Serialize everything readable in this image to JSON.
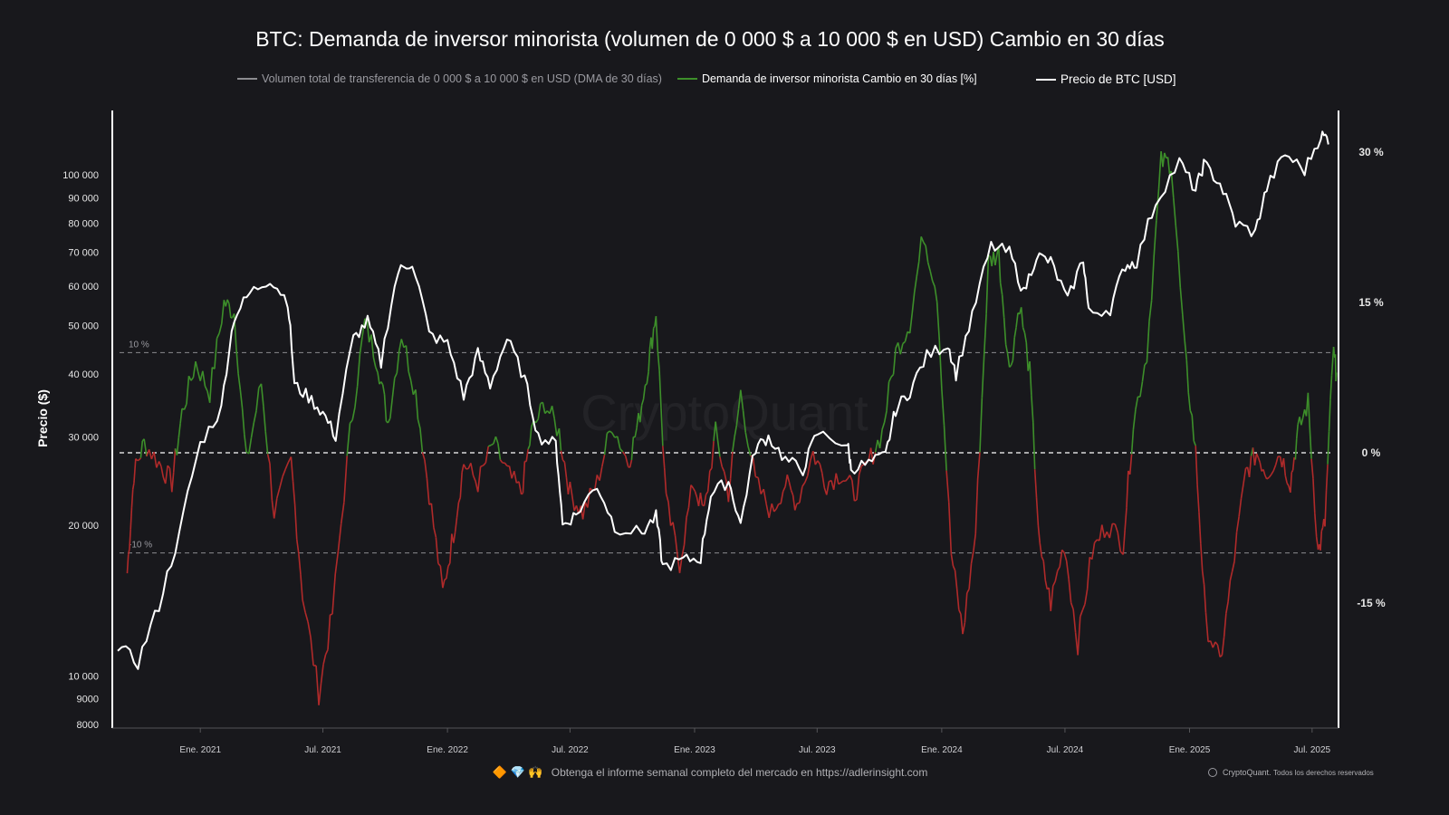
{
  "chart_data": {
    "type": "line",
    "title": "BTC: Demanda de inversor minorista (volumen de 0 000 $ a 10 000 $ en USD) Cambio en 30 días",
    "legend": [
      {
        "name": "Volumen total de transferencia de 0 000 $ a 10 000 $ en USD (DMA de 30 días)",
        "color": "#8c8c90"
      },
      {
        "name": "Demanda de inversor minorista Cambio en 30 días [%]",
        "color": "#3d8f2a"
      },
      {
        "name": "Precio de BTC [USD]",
        "color": "#ffffff"
      }
    ],
    "legend_position": "top",
    "ylabel_left": "Precio ($)",
    "y_left_scale": "log",
    "y_left_range": [
      8000,
      200000
    ],
    "y_left_ticks": [
      {
        "value": 100000,
        "label": "100 000"
      },
      {
        "value": 90000,
        "label": "90 000"
      },
      {
        "value": 80000,
        "label": "80 000"
      },
      {
        "value": 70000,
        "label": "70 000"
      },
      {
        "value": 60000,
        "label": "60 000"
      },
      {
        "value": 50000,
        "label": "50 000"
      },
      {
        "value": 40000,
        "label": "40 000"
      },
      {
        "value": 30000,
        "label": "30 000"
      },
      {
        "value": 20000,
        "label": "20 000"
      },
      {
        "value": 10000,
        "label": "10 000"
      },
      {
        "value": 9000,
        "label": "9000"
      },
      {
        "value": 8000,
        "label": "8000"
      }
    ],
    "y_right_range": [
      -25,
      40
    ],
    "y_right_ticks": [
      {
        "value": 30,
        "label": "30 %"
      },
      {
        "value": 15,
        "label": "15 %"
      },
      {
        "value": 0,
        "label": "0 %"
      },
      {
        "value": -15,
        "label": "-15 %"
      }
    ],
    "reference_lines": [
      {
        "value": 10,
        "label": "10 %"
      },
      {
        "value": 0,
        "label": ""
      },
      {
        "value": -10,
        "label": "-10 %"
      }
    ],
    "x_range": [
      "2020-09-01",
      "2025-08-01"
    ],
    "x_ticks": [
      {
        "date": "2021-01-01",
        "label": "Ene. 2021"
      },
      {
        "date": "2021-07-01",
        "label": "Jul. 2021"
      },
      {
        "date": "2022-01-01",
        "label": "Ene. 2022"
      },
      {
        "date": "2022-07-01",
        "label": "Jul. 2022"
      },
      {
        "date": "2023-01-01",
        "label": "Ene. 2023"
      },
      {
        "date": "2023-07-01",
        "label": "Jul. 2023"
      },
      {
        "date": "2024-01-01",
        "label": "Ene. 2024"
      },
      {
        "date": "2024-07-01",
        "label": "Jul. 2024"
      },
      {
        "date": "2025-01-01",
        "label": "Ene. 2025"
      },
      {
        "date": "2025-07-01",
        "label": "Jul. 2025"
      }
    ],
    "grid": false,
    "watermark": "CryptoQuant",
    "series": [
      {
        "name": "Precio de BTC [USD]",
        "axis": "left",
        "color": "#ffffff",
        "points": [
          [
            "2020-09-01",
            11500
          ],
          [
            "2020-10-01",
            10600
          ],
          [
            "2020-11-01",
            13800
          ],
          [
            "2020-12-01",
            19000
          ],
          [
            "2021-01-01",
            29000
          ],
          [
            "2021-02-01",
            34000
          ],
          [
            "2021-02-20",
            52000
          ],
          [
            "2021-03-15",
            58000
          ],
          [
            "2021-04-14",
            62000
          ],
          [
            "2021-05-10",
            56000
          ],
          [
            "2021-05-20",
            38000
          ],
          [
            "2021-06-10",
            36000
          ],
          [
            "2021-07-01",
            33500
          ],
          [
            "2021-07-20",
            30000
          ],
          [
            "2021-08-15",
            47000
          ],
          [
            "2021-09-05",
            51000
          ],
          [
            "2021-09-25",
            42000
          ],
          [
            "2021-10-20",
            64000
          ],
          [
            "2021-11-10",
            67000
          ],
          [
            "2021-12-05",
            48000
          ],
          [
            "2022-01-01",
            46000
          ],
          [
            "2022-01-25",
            36000
          ],
          [
            "2022-02-15",
            44000
          ],
          [
            "2022-03-05",
            38000
          ],
          [
            "2022-03-30",
            47000
          ],
          [
            "2022-04-25",
            39000
          ],
          [
            "2022-05-15",
            30000
          ],
          [
            "2022-06-10",
            29000
          ],
          [
            "2022-06-20",
            20000
          ],
          [
            "2022-07-10",
            21000
          ],
          [
            "2022-08-10",
            24000
          ],
          [
            "2022-09-05",
            19800
          ],
          [
            "2022-10-15",
            19300
          ],
          [
            "2022-11-05",
            20800
          ],
          [
            "2022-11-15",
            16500
          ],
          [
            "2022-12-15",
            17000
          ],
          [
            "2023-01-10",
            17200
          ],
          [
            "2023-01-25",
            23000
          ],
          [
            "2023-02-20",
            24500
          ],
          [
            "2023-03-10",
            20000
          ],
          [
            "2023-04-01",
            28500
          ],
          [
            "2023-04-20",
            30000
          ],
          [
            "2023-05-15",
            27000
          ],
          [
            "2023-06-10",
            25800
          ],
          [
            "2023-07-01",
            30500
          ],
          [
            "2023-08-15",
            29000
          ],
          [
            "2023-08-20",
            26000
          ],
          [
            "2023-09-15",
            26500
          ],
          [
            "2023-10-10",
            27500
          ],
          [
            "2023-10-25",
            34000
          ],
          [
            "2023-11-15",
            37000
          ],
          [
            "2023-12-10",
            43500
          ],
          [
            "2024-01-10",
            46000
          ],
          [
            "2024-01-22",
            40000
          ],
          [
            "2024-02-15",
            52000
          ],
          [
            "2024-03-14",
            72000
          ],
          [
            "2024-04-10",
            70000
          ],
          [
            "2024-05-01",
            58000
          ],
          [
            "2024-05-20",
            69000
          ],
          [
            "2024-06-10",
            67000
          ],
          [
            "2024-07-05",
            56000
          ],
          [
            "2024-07-28",
            68000
          ],
          [
            "2024-08-05",
            53000
          ],
          [
            "2024-09-06",
            54000
          ],
          [
            "2024-09-28",
            66000
          ],
          [
            "2024-10-15",
            67000
          ],
          [
            "2024-11-12",
            88000
          ],
          [
            "2024-12-17",
            106000
          ],
          [
            "2025-01-10",
            93000
          ],
          [
            "2025-01-22",
            105000
          ],
          [
            "2025-02-15",
            96000
          ],
          [
            "2025-03-10",
            80000
          ],
          [
            "2025-04-08",
            76500
          ],
          [
            "2025-04-25",
            94000
          ],
          [
            "2025-05-22",
            110000
          ],
          [
            "2025-06-20",
            102000
          ],
          [
            "2025-07-14",
            120000
          ],
          [
            "2025-07-25",
            118000
          ]
        ]
      },
      {
        "name": "Demanda de inversor minorista Cambio en 30 días [%]",
        "axis": "right",
        "color_positive": "#3d8f2a",
        "color_negative": "#b02a2a",
        "points": [
          [
            "2020-09-15",
            -12
          ],
          [
            "2020-09-25",
            -2
          ],
          [
            "2020-10-10",
            1
          ],
          [
            "2020-11-01",
            -1
          ],
          [
            "2020-11-20",
            -3
          ],
          [
            "2020-12-05",
            4
          ],
          [
            "2020-12-25",
            9
          ],
          [
            "2021-01-15",
            6
          ],
          [
            "2021-02-05",
            15
          ],
          [
            "2021-02-20",
            14
          ],
          [
            "2021-03-10",
            -1
          ],
          [
            "2021-04-01",
            7
          ],
          [
            "2021-04-20",
            -6
          ],
          [
            "2021-05-15",
            -1
          ],
          [
            "2021-06-01",
            -14
          ],
          [
            "2021-06-25",
            -24
          ],
          [
            "2021-07-15",
            -16
          ],
          [
            "2021-08-10",
            2
          ],
          [
            "2021-09-01",
            13
          ],
          [
            "2021-09-20",
            9
          ],
          [
            "2021-10-05",
            3
          ],
          [
            "2021-10-25",
            12
          ],
          [
            "2021-11-15",
            6
          ],
          [
            "2021-12-05",
            -4
          ],
          [
            "2021-12-25",
            -14
          ],
          [
            "2022-01-10",
            -8
          ],
          [
            "2022-01-25",
            -1
          ],
          [
            "2022-02-15",
            -3
          ],
          [
            "2022-03-10",
            1
          ],
          [
            "2022-03-30",
            -2
          ],
          [
            "2022-04-20",
            -4
          ],
          [
            "2022-05-05",
            2
          ],
          [
            "2022-05-25",
            5
          ],
          [
            "2022-06-15",
            2
          ],
          [
            "2022-07-01",
            -4
          ],
          [
            "2022-07-20",
            -6
          ],
          [
            "2022-08-10",
            -3
          ],
          [
            "2022-09-01",
            3
          ],
          [
            "2022-09-25",
            -1
          ],
          [
            "2022-10-10",
            3
          ],
          [
            "2022-10-25",
            9
          ],
          [
            "2022-11-05",
            14
          ],
          [
            "2022-11-20",
            -5
          ],
          [
            "2022-12-10",
            -11
          ],
          [
            "2022-12-30",
            -3
          ],
          [
            "2023-01-15",
            -6
          ],
          [
            "2023-02-01",
            2
          ],
          [
            "2023-02-20",
            -4
          ],
          [
            "2023-03-10",
            6
          ],
          [
            "2023-04-01",
            -3
          ],
          [
            "2023-04-25",
            -6
          ],
          [
            "2023-05-15",
            -3
          ],
          [
            "2023-06-01",
            -5
          ],
          [
            "2023-06-25",
            0
          ],
          [
            "2023-07-15",
            -3
          ],
          [
            "2023-08-05",
            -2
          ],
          [
            "2023-08-25",
            -4
          ],
          [
            "2023-09-15",
            -1
          ],
          [
            "2023-10-05",
            2
          ],
          [
            "2023-10-25",
            10
          ],
          [
            "2023-11-15",
            13
          ],
          [
            "2023-12-05",
            22
          ],
          [
            "2023-12-25",
            16
          ],
          [
            "2024-01-15",
            -10
          ],
          [
            "2024-02-01",
            -18
          ],
          [
            "2024-02-20",
            -8
          ],
          [
            "2024-03-10",
            19
          ],
          [
            "2024-03-25",
            20
          ],
          [
            "2024-04-10",
            8
          ],
          [
            "2024-04-25",
            15
          ],
          [
            "2024-05-10",
            8
          ],
          [
            "2024-05-25",
            -10
          ],
          [
            "2024-06-10",
            -15
          ],
          [
            "2024-06-30",
            -9
          ],
          [
            "2024-07-20",
            -19
          ],
          [
            "2024-08-10",
            -10
          ],
          [
            "2024-09-01",
            -7
          ],
          [
            "2024-09-25",
            -9
          ],
          [
            "2024-10-10",
            3
          ],
          [
            "2024-10-30",
            10
          ],
          [
            "2024-11-20",
            29
          ],
          [
            "2024-12-05",
            29
          ],
          [
            "2024-12-25",
            10
          ],
          [
            "2025-01-10",
            0
          ],
          [
            "2025-01-25",
            -17
          ],
          [
            "2025-02-15",
            -21
          ],
          [
            "2025-03-05",
            -12
          ],
          [
            "2025-03-25",
            -2
          ],
          [
            "2025-04-10",
            0
          ],
          [
            "2025-04-25",
            -2
          ],
          [
            "2025-05-15",
            0
          ],
          [
            "2025-05-30",
            -3
          ],
          [
            "2025-06-10",
            2
          ],
          [
            "2025-06-25",
            5
          ],
          [
            "2025-07-10",
            -10
          ],
          [
            "2025-07-20",
            -7
          ],
          [
            "2025-08-01",
            10
          ],
          [
            "2025-08-06",
            8
          ]
        ]
      }
    ]
  },
  "footer": {
    "note_icons": "🔶 💎 🙌",
    "note": "Obtenga el informe semanal completo del mercado en https://adlerinsight.com",
    "copyright_brand": "CryptoQuant.",
    "copyright_text": "Todos los derechos reservados"
  }
}
